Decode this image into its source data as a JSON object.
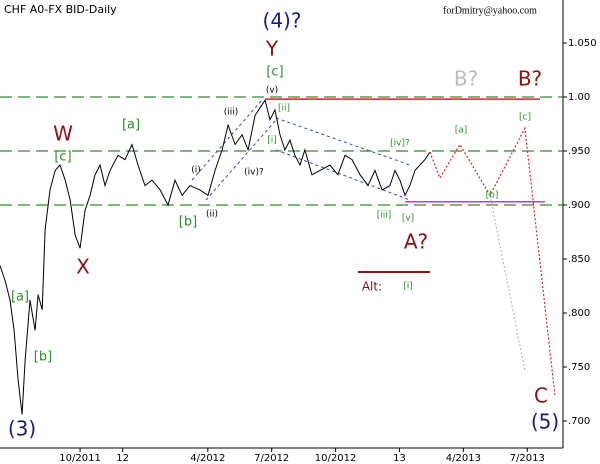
{
  "chart_data": {
    "type": "line",
    "title": "CHF A0-FX BID-Daily",
    "source": "forDmitry@yahoo.com",
    "color": "#000000",
    "xlim": [
      5.24,
      31.68
    ],
    "ylim": [
      0.675,
      1.0898
    ],
    "xticks": [
      {
        "value": 9,
        "label": "10/2011"
      },
      {
        "value": 11,
        "label": "12"
      },
      {
        "value": 15,
        "label": "4/2012"
      },
      {
        "value": 18,
        "label": "7/2012"
      },
      {
        "value": 21,
        "label": "10/2012"
      },
      {
        "value": 24,
        "label": "13"
      },
      {
        "value": 27,
        "label": "4/2013"
      },
      {
        "value": 30,
        "label": "7/2013"
      }
    ],
    "yticks": [
      {
        "value": 1.05,
        "label": "1.050"
      },
      {
        "value": 1.0,
        "label": "1.00"
      },
      {
        "value": 0.95,
        "label": ".950"
      },
      {
        "value": 0.9,
        "label": ".900"
      },
      {
        "value": 0.85,
        "label": ".850"
      },
      {
        "value": 0.8,
        "label": ".800"
      },
      {
        "value": 0.75,
        "label": ".750"
      },
      {
        "value": 0.7,
        "label": ".700"
      }
    ],
    "x": [
      5.24,
      5.48,
      5.71,
      5.9,
      6.09,
      6.28,
      6.42,
      6.65,
      6.89,
      7.03,
      7.22,
      7.36,
      7.59,
      7.83,
      8.06,
      8.3,
      8.53,
      8.77,
      9.0,
      9.23,
      9.47,
      9.7,
      9.94,
      10.17,
      10.41,
      10.78,
      11.11,
      11.44,
      11.72,
      12.05,
      12.38,
      12.76,
      13.13,
      13.46,
      13.79,
      14.16,
      14.63,
      15.01,
      15.34,
      15.67,
      15.95,
      16.28,
      16.61,
      16.89,
      17.22,
      17.45,
      17.69,
      17.92,
      18.15,
      18.39,
      18.62,
      18.86,
      19.09,
      19.33,
      19.56,
      19.89,
      20.27,
      20.74,
      21.11,
      21.44,
      21.77,
      22.15,
      22.52,
      22.85,
      23.18,
      23.55,
      23.79,
      24.02,
      24.26,
      24.49,
      24.73,
      24.96,
      25.2,
      25.43
    ],
    "values": [
      0.844,
      0.83,
      0.812,
      0.784,
      0.738,
      0.706,
      0.756,
      0.812,
      0.784,
      0.817,
      0.803,
      0.877,
      0.914,
      0.932,
      0.937,
      0.923,
      0.905,
      0.872,
      0.86,
      0.895,
      0.909,
      0.928,
      0.937,
      0.918,
      0.932,
      0.946,
      0.942,
      0.956,
      0.937,
      0.918,
      0.923,
      0.914,
      0.9,
      0.923,
      0.909,
      0.918,
      0.914,
      0.909,
      0.932,
      0.951,
      0.974,
      0.956,
      0.965,
      0.951,
      0.983,
      0.99,
      0.997,
      0.979,
      0.988,
      0.965,
      0.951,
      0.96,
      0.946,
      0.937,
      0.951,
      0.928,
      0.932,
      0.937,
      0.928,
      0.946,
      0.942,
      0.928,
      0.918,
      0.932,
      0.914,
      0.918,
      0.932,
      0.923,
      0.909,
      0.918,
      0.932,
      0.937,
      0.942,
      0.949
    ],
    "levels": [
      {
        "value": 1.0,
        "color": "#2e8b2e"
      },
      {
        "value": 0.95,
        "color": "#2e8b2e"
      },
      {
        "value": 0.9,
        "color": "#2e8b2e"
      },
      {
        "value": 0.998,
        "color": "#e02020",
        "xlim": [
          17.69,
          30.6
        ]
      },
      {
        "value": 0.903,
        "color": "#cc33cc",
        "xlim": [
          24.26,
          30.83
        ]
      }
    ],
    "forecasts": [
      {
        "x": [
          25.43,
          25.9,
          26.84,
          28.25,
          29.89,
          31.3
        ],
        "values": [
          0.949,
          0.925,
          0.956,
          0.909,
          0.971,
          0.724
        ],
        "color": "#e02020"
      },
      {
        "x": [
          28.25,
          29.89
        ],
        "values": [
          0.909,
          0.747
        ],
        "color": "#bbbbbb"
      }
    ],
    "annotations": [
      {
        "text": "(4)?",
        "color": "#1a1a80"
      },
      {
        "text": "Y",
        "color": "#8b1010"
      },
      {
        "text": "[c]",
        "color": "#2e8b2e"
      },
      {
        "text": "(v)",
        "color": "#000000"
      },
      {
        "text": "(iii)",
        "color": "#000000"
      },
      {
        "text": "[ii]",
        "color": "#2e8b2e"
      },
      {
        "text": "[i]",
        "color": "#2e8b2e"
      },
      {
        "text": "(i)",
        "color": "#000000"
      },
      {
        "text": "(iv)?",
        "color": "#000000"
      },
      {
        "text": "(ii)",
        "color": "#000000"
      },
      {
        "text": "W",
        "color": "#8b1010"
      },
      {
        "text": "[a]",
        "color": "#2e8b2e"
      },
      {
        "text": "[c]",
        "color": "#2e8b2e"
      },
      {
        "text": "[b]",
        "color": "#2e8b2e"
      },
      {
        "text": "X",
        "color": "#8b1010"
      },
      {
        "text": "[a]",
        "color": "#2e8b2e"
      },
      {
        "text": "[b]",
        "color": "#2e8b2e"
      },
      {
        "text": "(3)",
        "color": "#1a1a80"
      },
      {
        "text": "[iv]?",
        "color": "#2e8b2e"
      },
      {
        "text": "[iii]",
        "color": "#2e8b2e"
      },
      {
        "text": "[v]",
        "color": "#2e8b2e"
      },
      {
        "text": "A?",
        "color": "#8b1010"
      },
      {
        "text": "Alt:",
        "color": "#8b1010"
      },
      {
        "text": "[i]",
        "color": "#2e8b2e"
      },
      {
        "text": "B?",
        "color": "#bbbbbb"
      },
      {
        "text": "B?",
        "color": "#8b1010"
      },
      {
        "text": "[a]",
        "color": "#2e8b2e"
      },
      {
        "text": "[c]",
        "color": "#2e8b2e"
      },
      {
        "text": "[b]",
        "color": "#2e8b2e"
      },
      {
        "text": "C",
        "color": "#8b1010"
      },
      {
        "text": "(5)",
        "color": "#1a1a80"
      }
    ]
  }
}
